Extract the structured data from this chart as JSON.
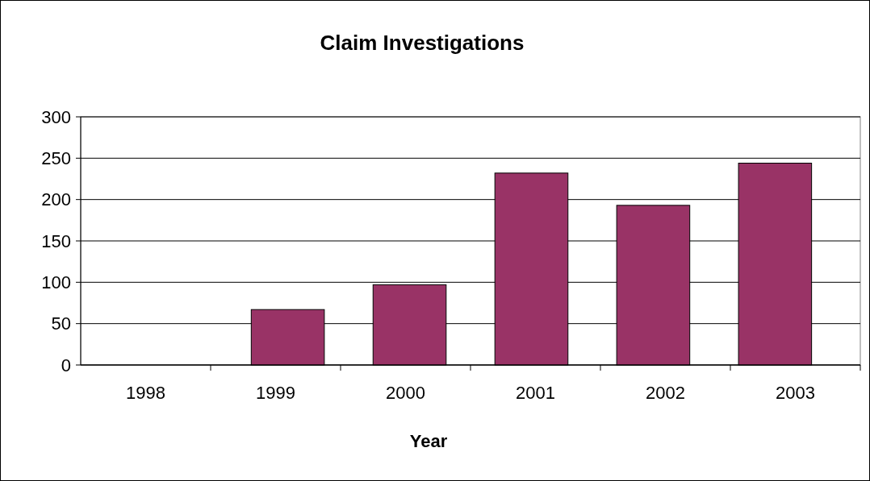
{
  "chart_data": {
    "type": "bar",
    "title": "Claim Investigations",
    "xlabel": "Year",
    "categories": [
      "1998",
      "1999",
      "2000",
      "2001",
      "2002",
      "2003"
    ],
    "values": [
      0,
      67,
      97,
      232,
      193,
      244
    ],
    "color": "#993366",
    "ylim": [
      0,
      300
    ],
    "yticks": [
      0,
      50,
      100,
      150,
      200,
      250,
      300
    ],
    "grid": "y"
  }
}
